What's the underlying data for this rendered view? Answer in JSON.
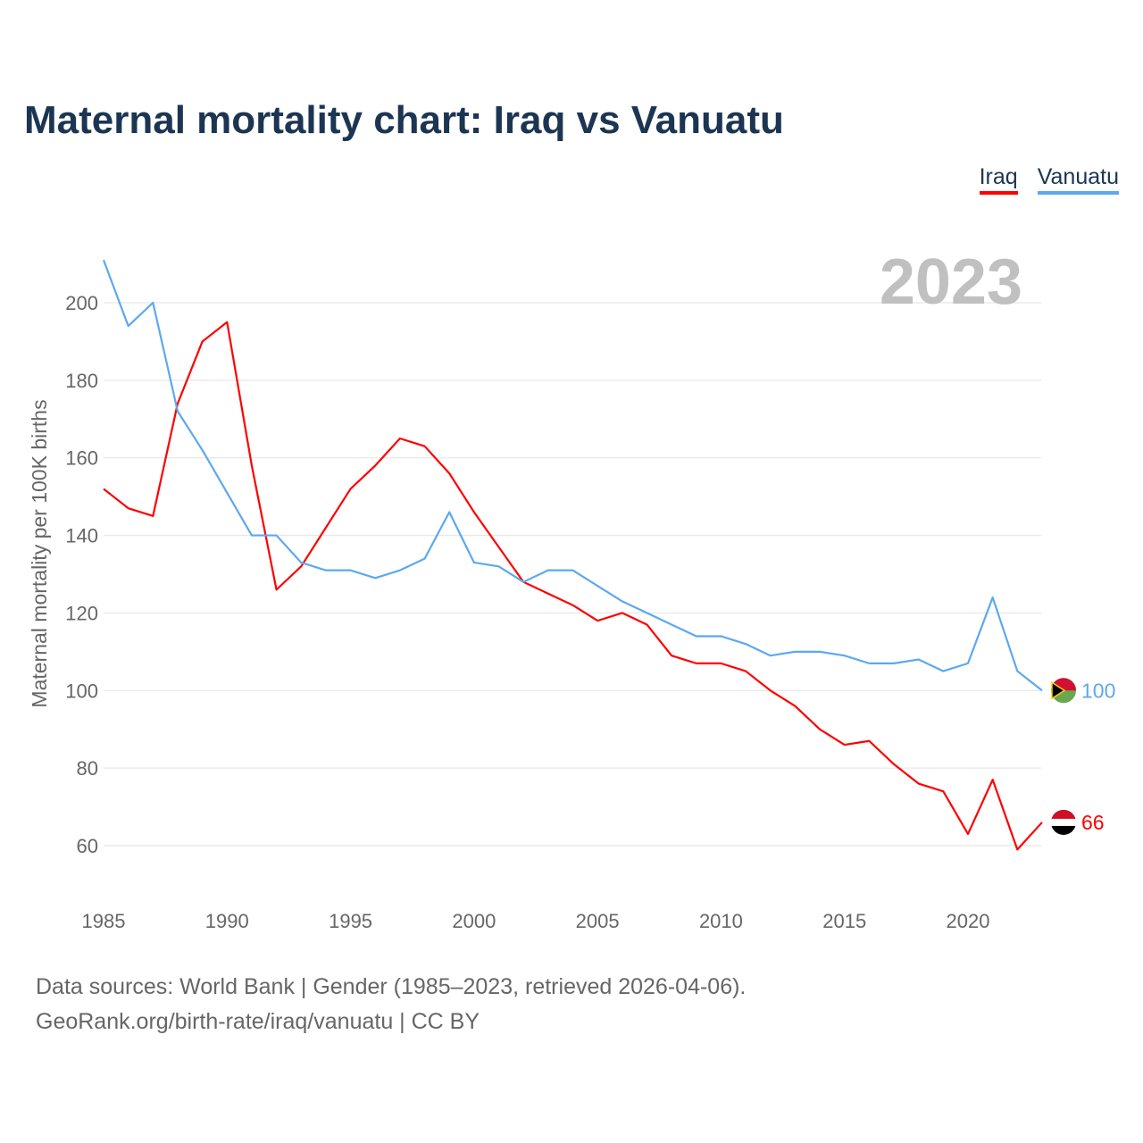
{
  "chart_data": {
    "type": "line",
    "title": "Maternal mortality chart: Iraq vs Vanuatu",
    "ylabel": "Maternal mortality per 100K births",
    "xlabel": "",
    "year_label": "2023",
    "xlim": [
      1985,
      2023
    ],
    "ylim": [
      50,
      215
    ],
    "yticks": [
      60,
      80,
      100,
      120,
      140,
      160,
      180,
      200
    ],
    "xticks": [
      1985,
      1990,
      1995,
      2000,
      2005,
      2010,
      2015,
      2020
    ],
    "grid": true,
    "legend_placement": "top-right",
    "x": [
      1985,
      1986,
      1987,
      1988,
      1989,
      1990,
      1991,
      1992,
      1993,
      1994,
      1995,
      1996,
      1997,
      1998,
      1999,
      2000,
      2001,
      2002,
      2003,
      2004,
      2005,
      2006,
      2007,
      2008,
      2009,
      2010,
      2011,
      2012,
      2013,
      2014,
      2015,
      2016,
      2017,
      2018,
      2019,
      2020,
      2021,
      2022,
      2023
    ],
    "series": [
      {
        "name": "Iraq",
        "color": "#ff0000",
        "end_label": "66",
        "values": [
          152,
          147,
          145,
          174,
          190,
          195,
          158,
          126,
          132,
          142,
          152,
          158,
          165,
          163,
          156,
          146,
          137,
          128,
          125,
          122,
          118,
          120,
          117,
          109,
          107,
          107,
          105,
          100,
          96,
          90,
          86,
          87,
          81,
          76,
          74,
          63,
          77,
          59,
          66
        ]
      },
      {
        "name": "Vanuatu",
        "color": "#5da8ee",
        "end_label": "100",
        "values": [
          211,
          194,
          200,
          172,
          162,
          151,
          140,
          140,
          133,
          131,
          131,
          129,
          131,
          134,
          146,
          133,
          132,
          128,
          131,
          131,
          127,
          123,
          120,
          117,
          114,
          114,
          112,
          109,
          110,
          110,
          109,
          107,
          107,
          108,
          105,
          107,
          124,
          105,
          100
        ]
      }
    ]
  },
  "footer": {
    "line1": "Data sources: World Bank | Gender (1985–2023, retrieved 2026-04-06).",
    "line2": "GeoRank.org/birth-rate/iraq/vanuatu | CC BY"
  }
}
